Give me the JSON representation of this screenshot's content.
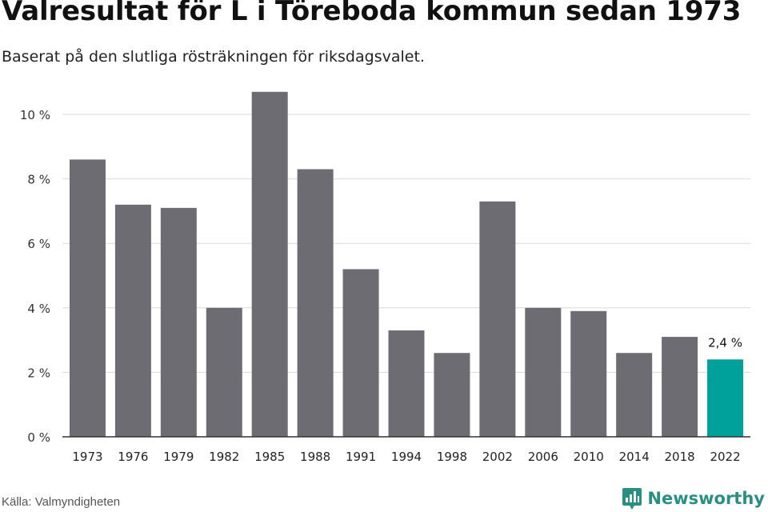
{
  "header": {
    "title": "Valresultat för L i Töreboda kommun sedan 1973",
    "subtitle": "Baserat på den slutliga rösträkningen för riksdagsvalet."
  },
  "footer": {
    "source": "Källa: Valmyndigheten",
    "brand": "Newsworthy",
    "brand_icon": "newsworthy-logo-icon"
  },
  "colors": {
    "bar": "#6d6c72",
    "highlight": "#00a19a",
    "grid": "#d9d9d9",
    "axis": "#333333",
    "brand": "#2a8f83"
  },
  "chart_data": {
    "type": "bar",
    "categories": [
      "1973",
      "1976",
      "1979",
      "1982",
      "1985",
      "1988",
      "1991",
      "1994",
      "1998",
      "2002",
      "2006",
      "2010",
      "2014",
      "2018",
      "2022"
    ],
    "values": [
      8.6,
      7.2,
      7.1,
      4.0,
      10.7,
      8.3,
      5.2,
      3.3,
      2.6,
      7.3,
      4.0,
      3.9,
      2.6,
      3.1,
      2.4
    ],
    "highlight_index": 14,
    "data_labels": [
      {
        "index": 14,
        "text": "2,4 %"
      }
    ],
    "yticks": [
      {
        "value": 0,
        "label": "0 %"
      },
      {
        "value": 2,
        "label": "2 %"
      },
      {
        "value": 4,
        "label": "4 %"
      },
      {
        "value": 6,
        "label": "6 %"
      },
      {
        "value": 8,
        "label": "8 %"
      },
      {
        "value": 10,
        "label": "10 %"
      }
    ],
    "ylim": [
      0,
      10.7
    ],
    "grid": true,
    "legend": "none",
    "xlabel": "",
    "ylabel": ""
  }
}
